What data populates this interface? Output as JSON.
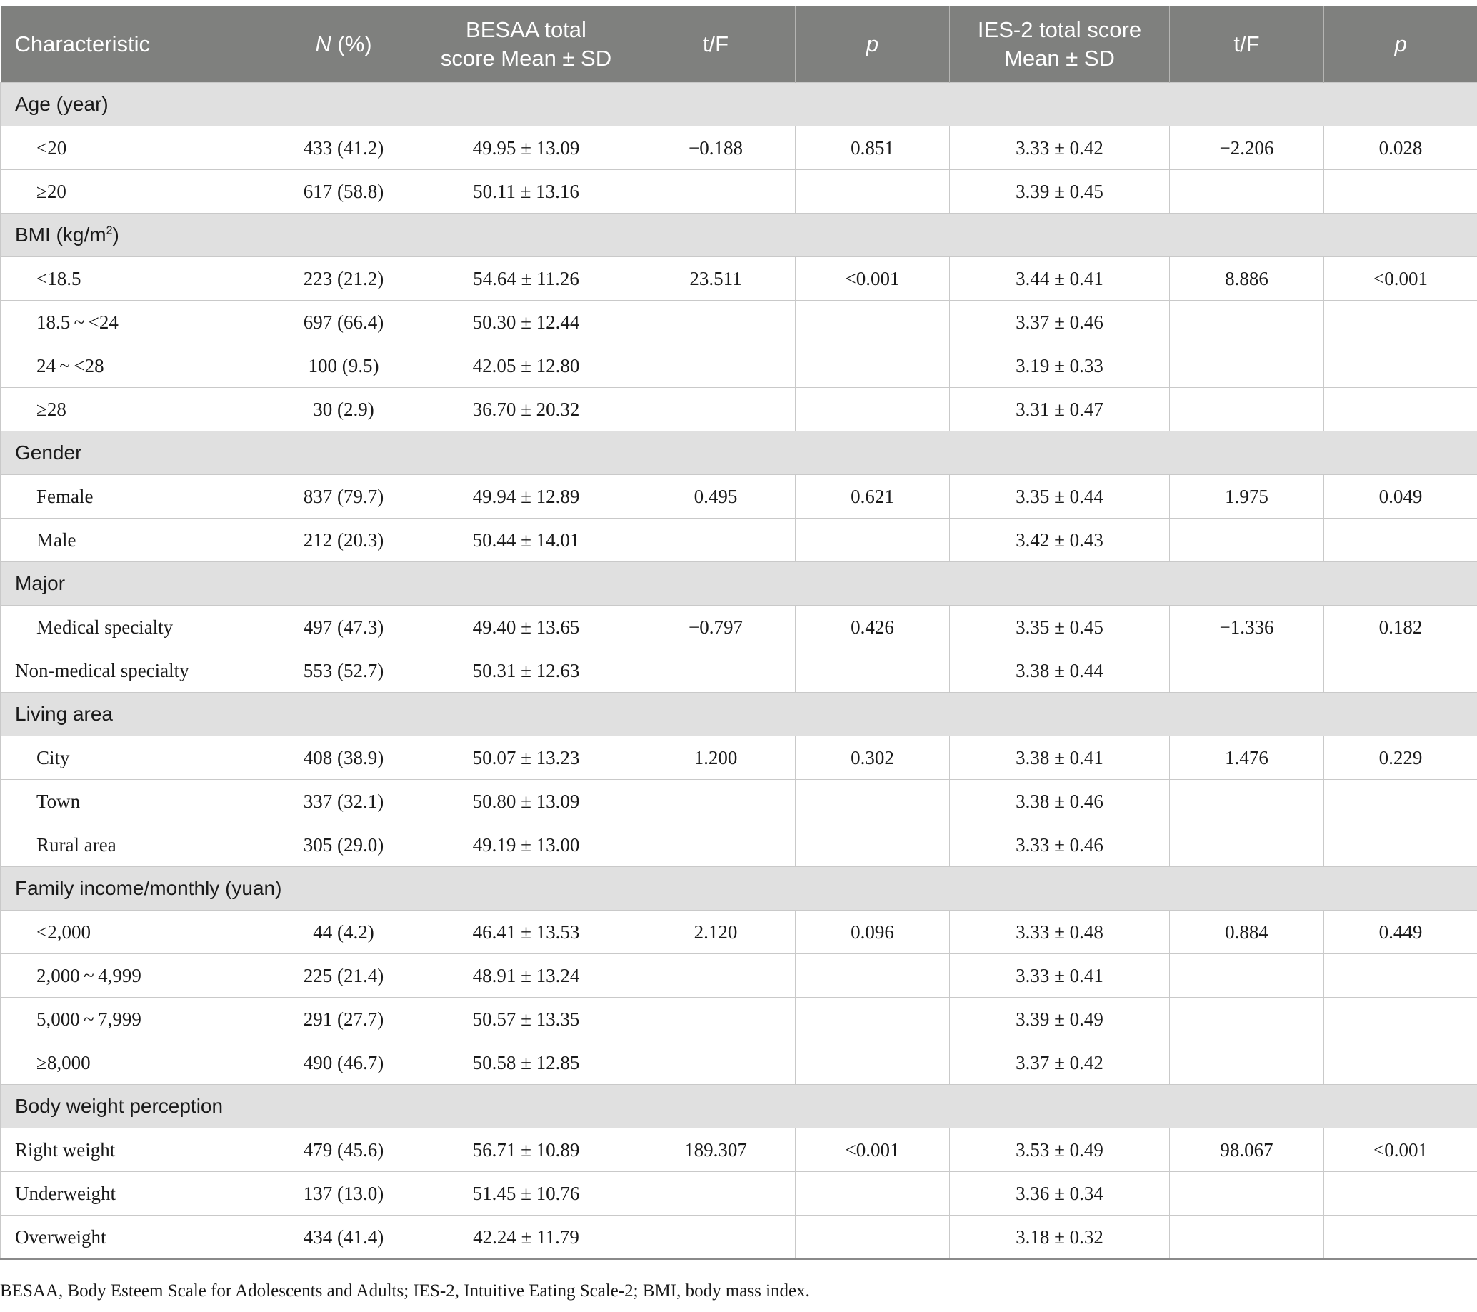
{
  "headers": {
    "characteristic": "Characteristic",
    "n_pct_italic": "N",
    "n_pct_rest": " (%)",
    "besaa_line1": "BESAA total",
    "besaa_line2": "score Mean ± SD",
    "tf1": "t/F",
    "p1": "p",
    "ies_line1": "IES-2 total score",
    "ies_line2": "Mean ± SD",
    "tf2": "t/F",
    "p2": "p"
  },
  "groups": [
    {
      "label": "Age (year)",
      "rows": [
        {
          "label": "<20",
          "n": "433 (41.2)",
          "besaa": "49.95 ± 13.09",
          "tf1": "−0.188",
          "p1": "0.851",
          "ies": "3.33 ± 0.42",
          "tf2": "−2.206",
          "p2": "0.028"
        },
        {
          "label": "≥20",
          "n": "617 (58.8)",
          "besaa": "50.11 ± 13.16",
          "tf1": "",
          "p1": "",
          "ies": "3.39 ± 0.45",
          "tf2": "",
          "p2": ""
        }
      ]
    },
    {
      "label": "BMI (kg/m",
      "label_sup": "2",
      "label_end": ")",
      "rows": [
        {
          "label": "<18.5",
          "n": "223 (21.2)",
          "besaa": "54.64 ± 11.26",
          "tf1": "23.511",
          "p1": "<0.001",
          "ies": "3.44 ± 0.41",
          "tf2": "8.886",
          "p2": "<0.001"
        },
        {
          "label": "18.5 ~ <24",
          "n": "697 (66.4)",
          "besaa": "50.30 ± 12.44",
          "tf1": "",
          "p1": "",
          "ies": "3.37 ± 0.46",
          "tf2": "",
          "p2": ""
        },
        {
          "label": "24 ~ <28",
          "n": "100 (9.5)",
          "besaa": "42.05 ± 12.80",
          "tf1": "",
          "p1": "",
          "ies": "3.19 ± 0.33",
          "tf2": "",
          "p2": ""
        },
        {
          "label": "≥28",
          "n": "30 (2.9)",
          "besaa": "36.70 ± 20.32",
          "tf1": "",
          "p1": "",
          "ies": "3.31 ± 0.47",
          "tf2": "",
          "p2": ""
        }
      ]
    },
    {
      "label": "Gender",
      "rows": [
        {
          "label": "Female",
          "n": "837 (79.7)",
          "besaa": "49.94 ± 12.89",
          "tf1": "0.495",
          "p1": "0.621",
          "ies": "3.35 ± 0.44",
          "tf2": "1.975",
          "p2": "0.049"
        },
        {
          "label": "Male",
          "n": "212 (20.3)",
          "besaa": "50.44 ± 14.01",
          "tf1": "",
          "p1": "",
          "ies": "3.42 ± 0.43",
          "tf2": "",
          "p2": ""
        }
      ]
    },
    {
      "label": "Major",
      "rows": [
        {
          "label": "Medical specialty",
          "n": "497 (47.3)",
          "besaa": "49.40 ± 13.65",
          "tf1": "−0.797",
          "p1": "0.426",
          "ies": "3.35 ± 0.45",
          "tf2": "−1.336",
          "p2": "0.182"
        },
        {
          "label": "Non-medical specialty",
          "noindent": true,
          "n": "553 (52.7)",
          "besaa": "50.31 ± 12.63",
          "tf1": "",
          "p1": "",
          "ies": "3.38 ± 0.44",
          "tf2": "",
          "p2": ""
        }
      ]
    },
    {
      "label": "Living area",
      "rows": [
        {
          "label": "City",
          "n": "408 (38.9)",
          "besaa": "50.07 ± 13.23",
          "tf1": "1.200",
          "p1": "0.302",
          "ies": "3.38 ± 0.41",
          "tf2": "1.476",
          "p2": "0.229"
        },
        {
          "label": "Town",
          "n": "337 (32.1)",
          "besaa": "50.80 ± 13.09",
          "tf1": "",
          "p1": "",
          "ies": "3.38 ± 0.46",
          "tf2": "",
          "p2": ""
        },
        {
          "label": "Rural area",
          "n": "305 (29.0)",
          "besaa": "49.19 ± 13.00",
          "tf1": "",
          "p1": "",
          "ies": "3.33 ± 0.46",
          "tf2": "",
          "p2": ""
        }
      ]
    },
    {
      "label": "Family income/monthly (yuan)",
      "rows": [
        {
          "label": "<2,000",
          "n": "44 (4.2)",
          "besaa": "46.41 ± 13.53",
          "tf1": "2.120",
          "p1": "0.096",
          "ies": "3.33 ± 0.48",
          "tf2": "0.884",
          "p2": "0.449"
        },
        {
          "label": "2,000 ~ 4,999",
          "n": "225 (21.4)",
          "besaa": "48.91 ± 13.24",
          "tf1": "",
          "p1": "",
          "ies": "3.33 ± 0.41",
          "tf2": "",
          "p2": ""
        },
        {
          "label": "5,000 ~ 7,999",
          "n": "291 (27.7)",
          "besaa": "50.57 ± 13.35",
          "tf1": "",
          "p1": "",
          "ies": "3.39 ± 0.49",
          "tf2": "",
          "p2": ""
        },
        {
          "label": "≥8,000",
          "n": "490 (46.7)",
          "besaa": "50.58 ± 12.85",
          "tf1": "",
          "p1": "",
          "ies": "3.37 ± 0.42",
          "tf2": "",
          "p2": ""
        }
      ]
    },
    {
      "label": "Body weight perception",
      "rows": [
        {
          "label": "Right weight",
          "noindent": true,
          "n": "479 (45.6)",
          "besaa": "56.71 ± 10.89",
          "tf1": "189.307",
          "p1": "<0.001",
          "ies": "3.53 ± 0.49",
          "tf2": "98.067",
          "p2": "<0.001"
        },
        {
          "label": "Underweight",
          "noindent": true,
          "n": "137 (13.0)",
          "besaa": "51.45 ± 10.76",
          "tf1": "",
          "p1": "",
          "ies": "3.36 ± 0.34",
          "tf2": "",
          "p2": ""
        },
        {
          "label": "Overweight",
          "noindent": true,
          "n": "434 (41.4)",
          "besaa": "42.24 ± 11.79",
          "tf1": "",
          "p1": "",
          "ies": "3.18 ± 0.32",
          "tf2": "",
          "p2": ""
        }
      ]
    }
  ],
  "footnote": "BESAA, Body Esteem Scale for Adolescents and Adults; IES-2, Intuitive Eating Scale-2; BMI, body mass index."
}
